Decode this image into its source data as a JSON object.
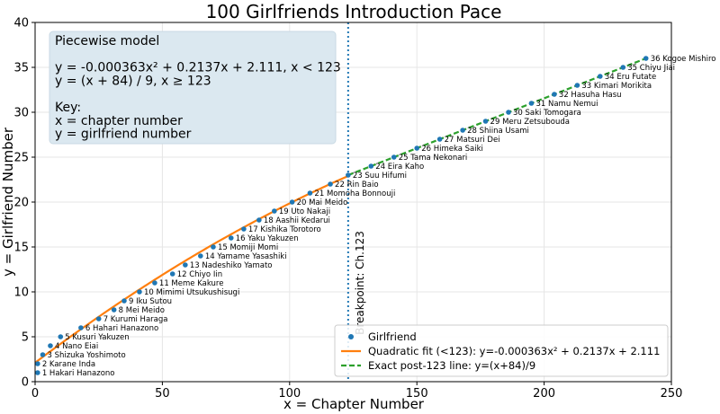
{
  "chart_data": {
    "type": "scatter",
    "title": "100 Girlfriends Introduction Pace",
    "xlabel": "x = Chapter Number",
    "ylabel": "y = Girlfriend Number",
    "xlim": [
      0,
      250
    ],
    "ylim": [
      0,
      40
    ],
    "xticks": [
      0,
      50,
      100,
      150,
      200,
      250
    ],
    "yticks": [
      0,
      5,
      10,
      15,
      20,
      25,
      30,
      35,
      40
    ],
    "grid": true,
    "legend_position": "lower-right",
    "series": [
      {
        "name": "Girlfriend",
        "kind": "scatter",
        "color": "#1f77b4",
        "points": [
          {
            "x": 1,
            "y": 1,
            "label": "1 Hakari Hanazono"
          },
          {
            "x": 1,
            "y": 2,
            "label": "2 Karane Inda"
          },
          {
            "x": 3,
            "y": 3,
            "label": "3 Shizuka Yoshimoto"
          },
          {
            "x": 6,
            "y": 4,
            "label": "4 Nano Eiai"
          },
          {
            "x": 10,
            "y": 5,
            "label": "5 Kusuri Yakuzen"
          },
          {
            "x": 18,
            "y": 6,
            "label": "6 Hahari Hanazono"
          },
          {
            "x": 25,
            "y": 7,
            "label": "7 Kurumi Haraga"
          },
          {
            "x": 31,
            "y": 8,
            "label": "8 Mei Meido"
          },
          {
            "x": 35,
            "y": 9,
            "label": "9 Iku Sutou"
          },
          {
            "x": 41,
            "y": 10,
            "label": "10 Mimimi Utsukushisugi"
          },
          {
            "x": 47,
            "y": 11,
            "label": "11 Meme Kakure"
          },
          {
            "x": 54,
            "y": 12,
            "label": "12 Chiyo Iin"
          },
          {
            "x": 59,
            "y": 13,
            "label": "13 Nadeshiko Yamato"
          },
          {
            "x": 65,
            "y": 14,
            "label": "14 Yamame Yasashiki"
          },
          {
            "x": 70,
            "y": 15,
            "label": "15 Momiji Momi"
          },
          {
            "x": 77,
            "y": 16,
            "label": "16 Yaku Yakuzen"
          },
          {
            "x": 82,
            "y": 17,
            "label": "17 Kishika Torotoro"
          },
          {
            "x": 88,
            "y": 18,
            "label": "18 Aashii Kedarui"
          },
          {
            "x": 94,
            "y": 19,
            "label": "19 Uto Nakaji"
          },
          {
            "x": 101,
            "y": 20,
            "label": "20 Mai Meido"
          },
          {
            "x": 108,
            "y": 21,
            "label": "21 Momoha Bonnouji"
          },
          {
            "x": 116,
            "y": 22,
            "label": "22 Rin Baio"
          },
          {
            "x": 123,
            "y": 23,
            "label": "23 Suu Hifumi"
          },
          {
            "x": 132,
            "y": 24,
            "label": "24 Eira Kaho"
          },
          {
            "x": 141,
            "y": 25,
            "label": "25 Tama Nekonari"
          },
          {
            "x": 150,
            "y": 26,
            "label": "26 Himeka Saiki"
          },
          {
            "x": 159,
            "y": 27,
            "label": "27 Matsuri Dei"
          },
          {
            "x": 168,
            "y": 28,
            "label": "28 Shiina Usami"
          },
          {
            "x": 177,
            "y": 29,
            "label": "29 Meru Zetsubouda"
          },
          {
            "x": 186,
            "y": 30,
            "label": "30 Saki Tomogara"
          },
          {
            "x": 195,
            "y": 31,
            "label": "31 Namu Nemui"
          },
          {
            "x": 204,
            "y": 32,
            "label": "32 Hasuha Hasu"
          },
          {
            "x": 213,
            "y": 33,
            "label": "33 Kimari Morikita"
          },
          {
            "x": 222,
            "y": 34,
            "label": "34 Eru Futate"
          },
          {
            "x": 231,
            "y": 35,
            "label": "35 Chiyu Jiai"
          },
          {
            "x": 240,
            "y": 36,
            "label": "36 Kogoe Mishiro"
          }
        ]
      },
      {
        "name": "Quadratic fit (<123): y=-0.000363x² + 0.2137x + 2.111",
        "kind": "line",
        "color": "#ff7f0e",
        "coefficients": {
          "a": -0.000363,
          "b": 0.2137,
          "c": 2.111
        },
        "x_range": [
          0,
          123
        ]
      },
      {
        "name": "Exact post-123 line: y=(x+84)/9",
        "kind": "dashed-line",
        "color": "#2ca02c",
        "x_range": [
          123,
          240
        ]
      }
    ],
    "breakpoint": {
      "x": 123,
      "label": "Breakpoint: Ch.123",
      "color": "#1f77b4"
    },
    "annotation_box": {
      "lines": [
        "Piecewise model",
        "",
        "y = -0.000363x² + 0.2137x + 2.111,   x < 123",
        "y = (x + 84) / 9,   x ≥ 123",
        "",
        "Key:",
        "x = chapter number",
        "y = girlfriend number"
      ],
      "background": "#dbe8f0"
    }
  }
}
